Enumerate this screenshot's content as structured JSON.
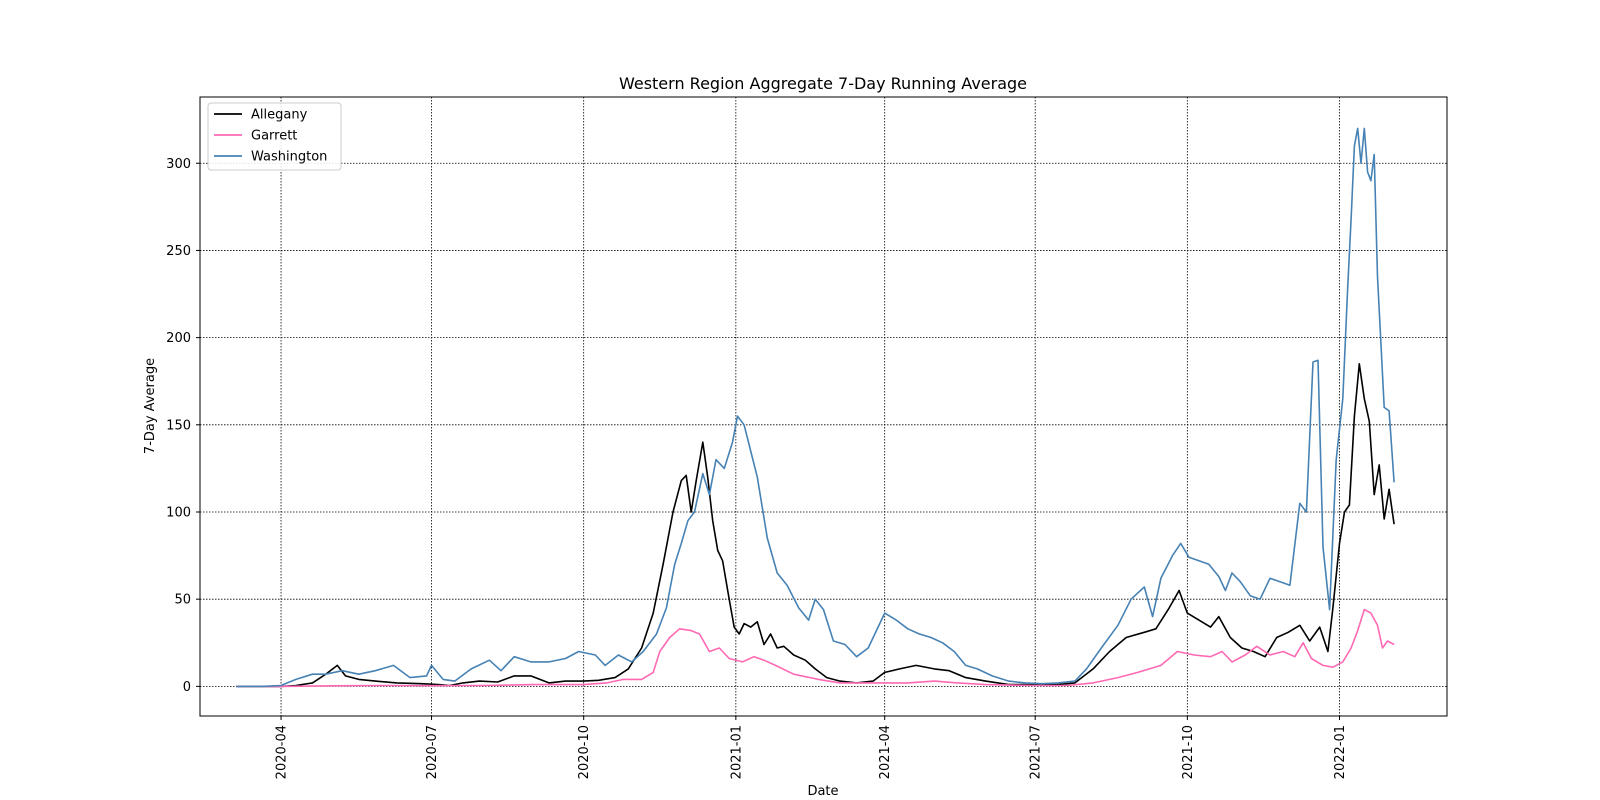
{
  "chart_data": {
    "type": "line",
    "title": "Western Region Aggregate 7-Day Running Average",
    "xlabel": "Date",
    "ylabel": "7-Day Average",
    "xlim": [
      "2020-02-12",
      "2022-03-07"
    ],
    "ylim": [
      -17,
      338
    ],
    "x_ticks": [
      "2020-04",
      "2020-07",
      "2020-10",
      "2021-01",
      "2021-04",
      "2021-07",
      "2021-10",
      "2022-01"
    ],
    "y_ticks": [
      0,
      50,
      100,
      150,
      200,
      250,
      300
    ],
    "grid": true,
    "grid_style": "dotted",
    "legend_position": "upper left",
    "series": [
      {
        "name": "Allegany",
        "color": "#000000",
        "points": [
          [
            "2020-03-05",
            0
          ],
          [
            "2020-03-20",
            0
          ],
          [
            "2020-04-01",
            0
          ],
          [
            "2020-04-10",
            0.5
          ],
          [
            "2020-04-20",
            2
          ],
          [
            "2020-04-28",
            7
          ],
          [
            "2020-05-05",
            12
          ],
          [
            "2020-05-10",
            6
          ],
          [
            "2020-05-18",
            4
          ],
          [
            "2020-05-28",
            3
          ],
          [
            "2020-06-10",
            2
          ],
          [
            "2020-06-25",
            1.5
          ],
          [
            "2020-07-05",
            1
          ],
          [
            "2020-07-12",
            0.5
          ],
          [
            "2020-07-20",
            2
          ],
          [
            "2020-07-30",
            3
          ],
          [
            "2020-08-10",
            2.5
          ],
          [
            "2020-08-20",
            6
          ],
          [
            "2020-08-30",
            6
          ],
          [
            "2020-09-10",
            2
          ],
          [
            "2020-09-20",
            3
          ],
          [
            "2020-10-01",
            3
          ],
          [
            "2020-10-10",
            3.5
          ],
          [
            "2020-10-20",
            5
          ],
          [
            "2020-10-28",
            10
          ],
          [
            "2020-11-05",
            22
          ],
          [
            "2020-11-12",
            42
          ],
          [
            "2020-11-18",
            70
          ],
          [
            "2020-11-24",
            100
          ],
          [
            "2020-11-29",
            118
          ],
          [
            "2020-12-02",
            121
          ],
          [
            "2020-12-05",
            100
          ],
          [
            "2020-12-08",
            118
          ],
          [
            "2020-12-12",
            140
          ],
          [
            "2020-12-15",
            120
          ],
          [
            "2020-12-18",
            95
          ],
          [
            "2020-12-21",
            78
          ],
          [
            "2020-12-24",
            72
          ],
          [
            "2020-12-28",
            50
          ],
          [
            "2020-12-31",
            34
          ],
          [
            "2021-01-03",
            30
          ],
          [
            "2021-01-06",
            36
          ],
          [
            "2021-01-10",
            34
          ],
          [
            "2021-01-14",
            37
          ],
          [
            "2021-01-18",
            24
          ],
          [
            "2021-01-22",
            30
          ],
          [
            "2021-01-26",
            22
          ],
          [
            "2021-01-30",
            23
          ],
          [
            "2021-02-05",
            18
          ],
          [
            "2021-02-12",
            15
          ],
          [
            "2021-02-18",
            10
          ],
          [
            "2021-02-25",
            5
          ],
          [
            "2021-03-05",
            3
          ],
          [
            "2021-03-15",
            2
          ],
          [
            "2021-03-25",
            3
          ],
          [
            "2021-04-01",
            8
          ],
          [
            "2021-04-10",
            10
          ],
          [
            "2021-04-20",
            12
          ],
          [
            "2021-05-01",
            10
          ],
          [
            "2021-05-10",
            9
          ],
          [
            "2021-05-20",
            5
          ],
          [
            "2021-06-01",
            3
          ],
          [
            "2021-06-15",
            1
          ],
          [
            "2021-07-01",
            1
          ],
          [
            "2021-07-15",
            1
          ],
          [
            "2021-07-25",
            2
          ],
          [
            "2021-08-05",
            10
          ],
          [
            "2021-08-15",
            20
          ],
          [
            "2021-08-25",
            28
          ],
          [
            "2021-09-05",
            31
          ],
          [
            "2021-09-12",
            33
          ],
          [
            "2021-09-20",
            45
          ],
          [
            "2021-09-26",
            55
          ],
          [
            "2021-10-01",
            42
          ],
          [
            "2021-10-08",
            38
          ],
          [
            "2021-10-15",
            34
          ],
          [
            "2021-10-20",
            40
          ],
          [
            "2021-10-27",
            28
          ],
          [
            "2021-11-03",
            22
          ],
          [
            "2021-11-10",
            20
          ],
          [
            "2021-11-17",
            17
          ],
          [
            "2021-11-24",
            28
          ],
          [
            "2021-12-01",
            31
          ],
          [
            "2021-12-08",
            35
          ],
          [
            "2021-12-14",
            26
          ],
          [
            "2021-12-20",
            34
          ],
          [
            "2021-12-25",
            20
          ],
          [
            "2021-12-28",
            45
          ],
          [
            "2022-01-01",
            82
          ],
          [
            "2022-01-04",
            100
          ],
          [
            "2022-01-07",
            104
          ],
          [
            "2022-01-10",
            155
          ],
          [
            "2022-01-13",
            185
          ],
          [
            "2022-01-16",
            165
          ],
          [
            "2022-01-19",
            152
          ],
          [
            "2022-01-22",
            110
          ],
          [
            "2022-01-25",
            127
          ],
          [
            "2022-01-28",
            96
          ],
          [
            "2022-01-31",
            113
          ],
          [
            "2022-02-03",
            93
          ]
        ]
      },
      {
        "name": "Garrett",
        "color": "#ff69b4",
        "points": [
          [
            "2020-03-05",
            0
          ],
          [
            "2020-04-01",
            0
          ],
          [
            "2020-05-01",
            0.3
          ],
          [
            "2020-06-01",
            0.5
          ],
          [
            "2020-07-01",
            0.4
          ],
          [
            "2020-08-01",
            0.5
          ],
          [
            "2020-09-01",
            1
          ],
          [
            "2020-10-01",
            1
          ],
          [
            "2020-10-15",
            2
          ],
          [
            "2020-10-25",
            4
          ],
          [
            "2020-11-05",
            4
          ],
          [
            "2020-11-12",
            8
          ],
          [
            "2020-11-16",
            20
          ],
          [
            "2020-11-22",
            28
          ],
          [
            "2020-11-28",
            33
          ],
          [
            "2020-12-05",
            32
          ],
          [
            "2020-12-10",
            30
          ],
          [
            "2020-12-16",
            20
          ],
          [
            "2020-12-22",
            22
          ],
          [
            "2020-12-28",
            16
          ],
          [
            "2021-01-05",
            14
          ],
          [
            "2021-01-12",
            17
          ],
          [
            "2021-01-18",
            15
          ],
          [
            "2021-01-25",
            12
          ],
          [
            "2021-02-05",
            7
          ],
          [
            "2021-02-20",
            4
          ],
          [
            "2021-03-05",
            2
          ],
          [
            "2021-03-20",
            2
          ],
          [
            "2021-04-01",
            2
          ],
          [
            "2021-04-15",
            2
          ],
          [
            "2021-05-01",
            3
          ],
          [
            "2021-05-15",
            2
          ],
          [
            "2021-06-01",
            1
          ],
          [
            "2021-07-01",
            0.5
          ],
          [
            "2021-07-20",
            0.5
          ],
          [
            "2021-08-05",
            2
          ],
          [
            "2021-08-20",
            5
          ],
          [
            "2021-09-01",
            8
          ],
          [
            "2021-09-15",
            12
          ],
          [
            "2021-09-25",
            20
          ],
          [
            "2021-10-05",
            18
          ],
          [
            "2021-10-15",
            17
          ],
          [
            "2021-10-22",
            20
          ],
          [
            "2021-10-28",
            14
          ],
          [
            "2021-11-05",
            18
          ],
          [
            "2021-11-12",
            23
          ],
          [
            "2021-11-20",
            18
          ],
          [
            "2021-11-28",
            20
          ],
          [
            "2021-12-05",
            17
          ],
          [
            "2021-12-10",
            25
          ],
          [
            "2021-12-15",
            16
          ],
          [
            "2021-12-22",
            12
          ],
          [
            "2021-12-28",
            11
          ],
          [
            "2022-01-03",
            14
          ],
          [
            "2022-01-08",
            22
          ],
          [
            "2022-01-12",
            32
          ],
          [
            "2022-01-16",
            44
          ],
          [
            "2022-01-20",
            42
          ],
          [
            "2022-01-24",
            35
          ],
          [
            "2022-01-27",
            22
          ],
          [
            "2022-01-30",
            26
          ],
          [
            "2022-02-03",
            24
          ]
        ]
      },
      {
        "name": "Washington",
        "color": "#4682b4",
        "points": [
          [
            "2020-03-05",
            0
          ],
          [
            "2020-03-20",
            0
          ],
          [
            "2020-04-01",
            0.5
          ],
          [
            "2020-04-10",
            4
          ],
          [
            "2020-04-20",
            7
          ],
          [
            "2020-04-28",
            7
          ],
          [
            "2020-05-08",
            9
          ],
          [
            "2020-05-18",
            7
          ],
          [
            "2020-05-28",
            9
          ],
          [
            "2020-06-08",
            12
          ],
          [
            "2020-06-18",
            5
          ],
          [
            "2020-06-28",
            6
          ],
          [
            "2020-07-01",
            12
          ],
          [
            "2020-07-08",
            4
          ],
          [
            "2020-07-15",
            3
          ],
          [
            "2020-07-25",
            10
          ],
          [
            "2020-08-05",
            15
          ],
          [
            "2020-08-12",
            9
          ],
          [
            "2020-08-20",
            17
          ],
          [
            "2020-08-30",
            14
          ],
          [
            "2020-09-10",
            14
          ],
          [
            "2020-09-20",
            16
          ],
          [
            "2020-09-28",
            20
          ],
          [
            "2020-10-08",
            18
          ],
          [
            "2020-10-14",
            12
          ],
          [
            "2020-10-22",
            18
          ],
          [
            "2020-10-30",
            14
          ],
          [
            "2020-11-06",
            20
          ],
          [
            "2020-11-14",
            30
          ],
          [
            "2020-11-20",
            45
          ],
          [
            "2020-11-25",
            70
          ],
          [
            "2020-11-29",
            82
          ],
          [
            "2020-12-03",
            95
          ],
          [
            "2020-12-07",
            100
          ],
          [
            "2020-12-12",
            122
          ],
          [
            "2020-12-16",
            110
          ],
          [
            "2020-12-20",
            130
          ],
          [
            "2020-12-25",
            125
          ],
          [
            "2020-12-30",
            140
          ],
          [
            "2021-01-02",
            155
          ],
          [
            "2021-01-06",
            150
          ],
          [
            "2021-01-10",
            135
          ],
          [
            "2021-01-14",
            120
          ],
          [
            "2021-01-20",
            85
          ],
          [
            "2021-01-26",
            65
          ],
          [
            "2021-02-01",
            58
          ],
          [
            "2021-02-08",
            45
          ],
          [
            "2021-02-14",
            38
          ],
          [
            "2021-02-18",
            50
          ],
          [
            "2021-02-23",
            44
          ],
          [
            "2021-03-01",
            26
          ],
          [
            "2021-03-08",
            24
          ],
          [
            "2021-03-15",
            17
          ],
          [
            "2021-03-22",
            22
          ],
          [
            "2021-03-28",
            34
          ],
          [
            "2021-04-01",
            42
          ],
          [
            "2021-04-08",
            38
          ],
          [
            "2021-04-15",
            33
          ],
          [
            "2021-04-22",
            30
          ],
          [
            "2021-04-29",
            28
          ],
          [
            "2021-05-06",
            25
          ],
          [
            "2021-05-13",
            20
          ],
          [
            "2021-05-20",
            12
          ],
          [
            "2021-05-27",
            10
          ],
          [
            "2021-06-05",
            6
          ],
          [
            "2021-06-15",
            3
          ],
          [
            "2021-06-25",
            2
          ],
          [
            "2021-07-05",
            1.5
          ],
          [
            "2021-07-15",
            2
          ],
          [
            "2021-07-25",
            3
          ],
          [
            "2021-08-01",
            10
          ],
          [
            "2021-08-10",
            22
          ],
          [
            "2021-08-20",
            35
          ],
          [
            "2021-08-28",
            50
          ],
          [
            "2021-09-05",
            57
          ],
          [
            "2021-09-10",
            40
          ],
          [
            "2021-09-15",
            62
          ],
          [
            "2021-09-22",
            75
          ],
          [
            "2021-09-27",
            82
          ],
          [
            "2021-10-02",
            74
          ],
          [
            "2021-10-08",
            72
          ],
          [
            "2021-10-14",
            70
          ],
          [
            "2021-10-20",
            63
          ],
          [
            "2021-10-24",
            55
          ],
          [
            "2021-10-28",
            65
          ],
          [
            "2021-11-02",
            60
          ],
          [
            "2021-11-08",
            52
          ],
          [
            "2021-11-14",
            50
          ],
          [
            "2021-11-20",
            62
          ],
          [
            "2021-11-26",
            60
          ],
          [
            "2021-12-02",
            58
          ],
          [
            "2021-12-08",
            105
          ],
          [
            "2021-12-12",
            100
          ],
          [
            "2021-12-16",
            186
          ],
          [
            "2021-12-19",
            187
          ],
          [
            "2021-12-22",
            80
          ],
          [
            "2021-12-26",
            44
          ],
          [
            "2021-12-30",
            130
          ],
          [
            "2022-01-03",
            165
          ],
          [
            "2022-01-06",
            230
          ],
          [
            "2022-01-08",
            268
          ],
          [
            "2022-01-10",
            310
          ],
          [
            "2022-01-12",
            320
          ],
          [
            "2022-01-14",
            300
          ],
          [
            "2022-01-16",
            320
          ],
          [
            "2022-01-18",
            295
          ],
          [
            "2022-01-20",
            290
          ],
          [
            "2022-01-22",
            305
          ],
          [
            "2022-01-24",
            235
          ],
          [
            "2022-01-28",
            160
          ],
          [
            "2022-01-31",
            158
          ],
          [
            "2022-02-03",
            117
          ]
        ]
      }
    ]
  }
}
